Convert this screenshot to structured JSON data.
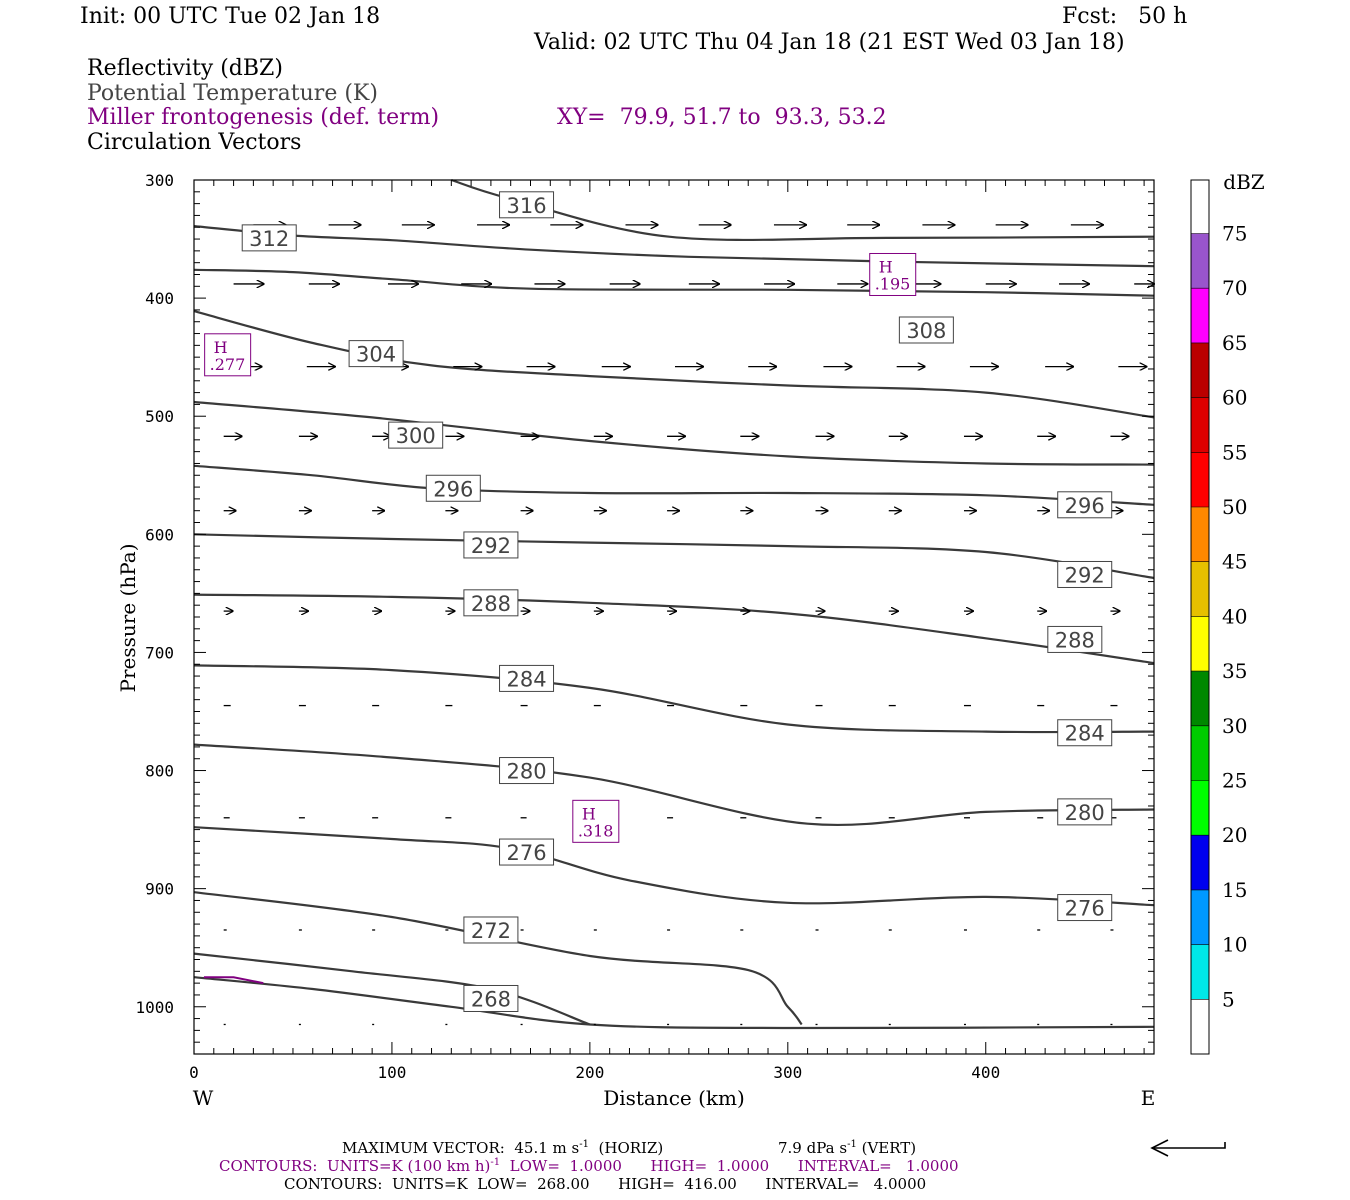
{
  "header": {
    "init": "Init: 00 UTC Tue 02 Jan 18",
    "fcst": "Fcst:   50 h",
    "valid": "Valid: 02 UTC Thu 04 Jan 18 (21 EST Wed 03 Jan 18)",
    "field1": "Reflectivity (dBZ)",
    "field2": "Potential Temperature (K)",
    "field3": "Miller frontogenesis (def. term)",
    "xy": "XY=  79.9, 51.7 to  93.3, 53.2",
    "field4": "Circulation Vectors"
  },
  "footer": {
    "maxvec_a": "MAXIMUM VECTOR:  45.1 m s",
    "maxvec_b": "(HORIZ)",
    "maxvec_c": "7.9 dPa s",
    "maxvec_d": "(VERT)",
    "contours1_a": "CONTOURS:  UNITS=K (100 km h)",
    "contours1_b": "LOW=  1.0000      HIGH=  1.0000      INTERVAL=   1.0000",
    "contours2": "CONTOURS:  UNITS=K  LOW=  268.00      HIGH=  416.00      INTERVAL=   4.0000",
    "exp": "-1"
  },
  "colors": {
    "contour": "#3a3a3a",
    "purple": "#800080"
  },
  "chart_data": {
    "type": "cross-section",
    "xlabel": "Distance (km)",
    "ylabel": "Pressure (hPa)",
    "xlim": [
      0,
      485
    ],
    "ylim": [
      1040,
      300
    ],
    "x_ticks": [
      "0",
      "100",
      "200",
      "300",
      "400"
    ],
    "x_tick_values": [
      0,
      100,
      200,
      300,
      400
    ],
    "y_ticks": [
      "300",
      "400",
      "500",
      "600",
      "700",
      "800",
      "900",
      "1000"
    ],
    "y_tick_values": [
      300,
      400,
      500,
      600,
      700,
      800,
      900,
      1000
    ],
    "west_label": "W",
    "east_label": "E",
    "theta_contours": [
      {
        "label": "316",
        "pts": [
          [
            130,
            300
          ],
          [
            160,
            316
          ],
          [
            240,
            348
          ],
          [
            350,
            349
          ],
          [
            485,
            348
          ]
        ],
        "labels": [
          [
            168,
            321
          ]
        ]
      },
      {
        "label": "312",
        "pts": [
          [
            0,
            339
          ],
          [
            50,
            347
          ],
          [
            100,
            351
          ],
          [
            170,
            359
          ],
          [
            250,
            365
          ],
          [
            350,
            369
          ],
          [
            485,
            373
          ]
        ],
        "labels": [
          [
            38,
            349
          ]
        ],
        "hide_labels": true
      },
      {
        "label": "312b",
        "pts": [
          [
            0,
            376
          ],
          [
            50,
            378
          ],
          [
            100,
            384
          ],
          [
            170,
            392
          ],
          [
            300,
            393
          ],
          [
            400,
            395
          ],
          [
            485,
            398
          ]
        ]
      },
      {
        "label": "308",
        "pts": [
          [
            0,
            411
          ],
          [
            60,
            438
          ],
          [
            120,
            457
          ],
          [
            200,
            466
          ],
          [
            300,
            474
          ],
          [
            400,
            480
          ],
          [
            485,
            501
          ]
        ],
        "labels": [
          [
            370,
            427
          ]
        ],
        "hide_labels": true
      },
      {
        "label": "304",
        "pts": [
          [
            0,
            488
          ],
          [
            90,
            501
          ],
          [
            200,
            521
          ],
          [
            300,
            534
          ],
          [
            400,
            540
          ],
          [
            485,
            541
          ]
        ],
        "labels": [
          [
            92,
            447
          ]
        ]
      },
      {
        "label": "300",
        "pts": [
          [
            0,
            542
          ],
          [
            60,
            550
          ],
          [
            120,
            561
          ],
          [
            200,
            565
          ],
          [
            300,
            565
          ],
          [
            400,
            567
          ],
          [
            485,
            575
          ]
        ],
        "labels": [
          [
            112,
            516
          ]
        ]
      },
      {
        "label": "296",
        "pts": [
          [
            0,
            600
          ],
          [
            100,
            604
          ],
          [
            200,
            607
          ],
          [
            300,
            610
          ],
          [
            400,
            615
          ],
          [
            485,
            637
          ]
        ],
        "labels": [
          [
            131,
            561
          ],
          [
            450,
            575
          ]
        ]
      },
      {
        "label": "292",
        "pts": [
          [
            0,
            651
          ],
          [
            100,
            653
          ],
          [
            200,
            658
          ],
          [
            300,
            667
          ],
          [
            400,
            688
          ],
          [
            485,
            709
          ]
        ],
        "labels": [
          [
            150,
            609
          ],
          [
            450,
            634
          ]
        ]
      },
      {
        "label": "288",
        "pts": [
          [
            0,
            711
          ],
          [
            100,
            715
          ],
          [
            200,
            730
          ],
          [
            300,
            761
          ],
          [
            400,
            767
          ],
          [
            485,
            767
          ]
        ],
        "labels": [
          [
            150,
            658
          ],
          [
            445,
            689
          ]
        ]
      },
      {
        "label": "284",
        "pts": [
          [
            0,
            778
          ],
          [
            100,
            789
          ],
          [
            200,
            806
          ],
          [
            310,
            845
          ],
          [
            400,
            835
          ],
          [
            485,
            833
          ]
        ],
        "labels": [
          [
            168,
            722
          ],
          [
            450,
            768
          ]
        ]
      },
      {
        "label": "280",
        "pts": [
          [
            0,
            848
          ],
          [
            100,
            858
          ],
          [
            160,
            866
          ],
          [
            220,
            893
          ],
          [
            300,
            912
          ],
          [
            400,
            907
          ],
          [
            485,
            914
          ]
        ],
        "labels": [
          [
            168,
            800
          ],
          [
            450,
            835
          ]
        ]
      },
      {
        "label": "276",
        "pts": [
          [
            0,
            903
          ],
          [
            100,
            924
          ],
          [
            200,
            957
          ],
          [
            280,
            969
          ],
          [
            300,
            1000
          ],
          [
            307,
            1015
          ]
        ],
        "labels": [
          [
            168,
            869
          ],
          [
            450,
            916
          ]
        ]
      },
      {
        "label": "272",
        "pts": [
          [
            0,
            955
          ],
          [
            80,
            970
          ],
          [
            150,
            985
          ],
          [
            200,
            1015
          ]
        ],
        "labels": [
          [
            150,
            935
          ]
        ]
      },
      {
        "label": "268",
        "pts": [
          [
            0,
            975
          ],
          [
            60,
            985
          ],
          [
            130,
            1000
          ],
          [
            200,
            1015
          ],
          [
            300,
            1018
          ],
          [
            485,
            1017
          ]
        ],
        "labels": [
          [
            150,
            993
          ]
        ]
      }
    ],
    "frontogenesis_maxima": [
      {
        "kind": "H",
        "value": ".195",
        "x": 353,
        "p": 380
      },
      {
        "kind": "H",
        "value": ".277",
        "x": 17,
        "p": 448
      },
      {
        "kind": "H",
        "value": ".318",
        "x": 203,
        "p": 843
      }
    ],
    "vector_rows": [
      {
        "p": 338,
        "x": [
          30,
          68,
          105,
          143,
          180,
          218,
          255,
          293,
          330,
          368,
          405,
          443,
          485
        ],
        "len": 32
      },
      {
        "p": 388,
        "x": [
          20,
          58,
          98,
          135,
          172,
          210,
          250,
          288,
          325,
          362,
          400,
          437,
          475
        ],
        "len": 30
      },
      {
        "p": 458,
        "x": [
          20,
          57,
          94,
          131,
          168,
          206,
          243,
          280,
          318,
          355,
          392,
          430,
          467
        ],
        "len": 28
      },
      {
        "p": 517,
        "x": [
          15,
          53,
          90,
          127,
          165,
          202,
          239,
          276,
          314,
          351,
          389,
          426,
          463
        ],
        "len": 18
      },
      {
        "p": 580,
        "x": [
          15,
          53,
          90,
          127,
          165,
          202,
          239,
          276,
          314,
          351,
          389,
          426,
          463
        ],
        "len": 12
      },
      {
        "p": 665,
        "x": [
          15,
          53,
          90,
          127,
          165,
          202,
          239,
          276,
          314,
          351,
          389,
          426,
          463
        ],
        "len": 9
      },
      {
        "p": 745,
        "x": [
          15,
          53,
          90,
          127,
          165,
          202,
          239,
          276,
          314,
          351,
          389,
          426,
          463
        ],
        "len": 7
      },
      {
        "p": 840,
        "x": [
          15,
          53,
          90,
          127,
          165,
          202,
          239,
          276,
          314,
          351,
          389,
          426,
          463
        ],
        "len": 6
      },
      {
        "p": 935,
        "x": [
          15,
          53,
          90,
          127,
          165,
          202,
          239,
          276,
          314,
          351,
          389,
          426,
          463
        ],
        "len": 3
      },
      {
        "p": 1015,
        "x": [
          15,
          53,
          90,
          127,
          165,
          202,
          239,
          276,
          314,
          351,
          389,
          426,
          463
        ],
        "len": 2
      }
    ],
    "colorbar": {
      "title": "dBZ",
      "labels": [
        "5",
        "10",
        "15",
        "20",
        "25",
        "30",
        "35",
        "40",
        "45",
        "50",
        "55",
        "60",
        "65",
        "70",
        "75"
      ],
      "colors": [
        "#00e8e8",
        "#0099ff",
        "#0000ee",
        "#00ff00",
        "#00cc00",
        "#008800",
        "#ffff00",
        "#e6c000",
        "#ff8800",
        "#ff0000",
        "#dd0000",
        "#bb0000",
        "#ff00ff",
        "#9955cc",
        "#ffffff"
      ]
    }
  }
}
